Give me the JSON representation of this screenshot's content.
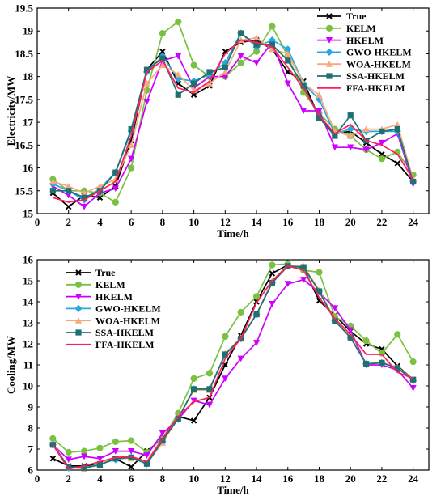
{
  "chart_data": [
    {
      "type": "line",
      "title": "",
      "xlabel": "Time/h",
      "ylabel": "Electricity/MW",
      "xlim": [
        0,
        25
      ],
      "ylim": [
        15,
        19.5
      ],
      "xticks": [
        0,
        2,
        4,
        6,
        8,
        10,
        12,
        14,
        16,
        18,
        20,
        22,
        24
      ],
      "yticks": [
        15,
        15.5,
        16,
        16.5,
        17,
        17.5,
        18,
        18.5,
        19,
        19.5
      ],
      "ytick_labels": [
        "15",
        "15.5",
        "16",
        "16.5",
        "17",
        "17.5",
        "18",
        "18.5",
        "19",
        "19.5"
      ],
      "grid": false,
      "legend": "top-right",
      "x": [
        1,
        2,
        3,
        4,
        5,
        6,
        7,
        8,
        9,
        10,
        11,
        12,
        13,
        14,
        15,
        16,
        17,
        18,
        19,
        20,
        21,
        22,
        23,
        24
      ],
      "series": [
        {
          "name": "True",
          "color": "#000000",
          "marker": "x",
          "values": [
            15.45,
            15.15,
            15.4,
            15.35,
            15.6,
            16.6,
            18.15,
            18.55,
            17.85,
            17.6,
            17.8,
            18.55,
            18.75,
            18.8,
            18.6,
            18.1,
            17.9,
            17.1,
            16.75,
            16.8,
            16.55,
            16.3,
            16.1,
            15.7
          ]
        },
        {
          "name": "KELM",
          "color": "#7ac142",
          "marker": "circle",
          "values": [
            15.75,
            15.5,
            15.5,
            15.45,
            15.25,
            16.0,
            17.7,
            18.95,
            19.2,
            18.25,
            18.0,
            18.0,
            18.3,
            18.55,
            19.1,
            18.45,
            17.65,
            17.2,
            16.85,
            16.7,
            16.4,
            16.2,
            16.35,
            15.85
          ]
        },
        {
          "name": "HKELM",
          "color": "#cc00ff",
          "marker": "triangle-down",
          "values": [
            15.6,
            15.4,
            15.15,
            15.45,
            15.55,
            16.2,
            17.45,
            18.35,
            18.45,
            17.75,
            18.0,
            18.0,
            18.45,
            18.3,
            18.75,
            17.85,
            17.25,
            17.25,
            16.45,
            16.45,
            16.4,
            16.55,
            16.75,
            15.65
          ]
        },
        {
          "name": "GWO-HKELM",
          "color": "#29a8e0",
          "marker": "diamond",
          "values": [
            15.65,
            15.5,
            15.3,
            15.55,
            15.9,
            16.8,
            18.1,
            18.45,
            17.95,
            17.9,
            18.05,
            18.3,
            18.95,
            18.65,
            18.8,
            18.6,
            17.85,
            17.5,
            16.75,
            16.85,
            16.8,
            16.8,
            16.8,
            15.7
          ]
        },
        {
          "name": "WOA-HKELM",
          "color": "#f5a97f",
          "marker": "triangle-up",
          "values": [
            15.7,
            15.6,
            15.45,
            15.6,
            15.75,
            16.5,
            17.85,
            18.25,
            18.05,
            17.7,
            17.85,
            18.1,
            18.8,
            18.85,
            18.6,
            18.5,
            17.85,
            17.6,
            16.8,
            16.7,
            16.85,
            16.85,
            16.95,
            15.75
          ]
        },
        {
          "name": "SSA-HKELM",
          "color": "#1f7071",
          "marker": "square",
          "values": [
            15.5,
            15.5,
            15.35,
            15.5,
            15.9,
            16.85,
            18.15,
            18.4,
            17.6,
            17.85,
            18.1,
            18.2,
            18.95,
            18.7,
            18.7,
            18.35,
            17.8,
            17.1,
            16.7,
            17.15,
            16.6,
            16.8,
            16.85,
            15.7
          ]
        },
        {
          "name": "FFA-HKELM",
          "color": "#ff1e5a",
          "marker": "none",
          "values": [
            15.35,
            15.25,
            15.3,
            15.5,
            15.7,
            16.7,
            18.1,
            18.35,
            17.75,
            17.65,
            17.9,
            18.5,
            18.8,
            18.75,
            18.65,
            18.2,
            17.75,
            17.15,
            16.75,
            16.95,
            16.6,
            16.5,
            16.3,
            15.75
          ]
        }
      ]
    },
    {
      "type": "line",
      "title": "",
      "xlabel": "Time/h",
      "ylabel": "Cooling/MW",
      "xlim": [
        0,
        25
      ],
      "ylim": [
        6,
        16
      ],
      "xticks": [
        0,
        2,
        4,
        6,
        8,
        10,
        12,
        14,
        16,
        18,
        20,
        22,
        24
      ],
      "yticks": [
        6,
        7,
        8,
        9,
        10,
        11,
        12,
        13,
        14,
        15,
        16
      ],
      "ytick_labels": [
        "6",
        "7",
        "8",
        "9",
        "10",
        "11",
        "12",
        "13",
        "14",
        "15",
        "16"
      ],
      "grid": false,
      "legend": "top-left",
      "x": [
        1,
        2,
        3,
        4,
        5,
        6,
        7,
        8,
        9,
        10,
        11,
        12,
        13,
        14,
        15,
        16,
        17,
        18,
        19,
        20,
        21,
        22,
        23,
        24
      ],
      "series": [
        {
          "name": "True",
          "color": "#000000",
          "marker": "x",
          "values": [
            6.55,
            6.2,
            6.2,
            6.3,
            6.55,
            6.15,
            6.9,
            7.5,
            8.55,
            8.35,
            9.45,
            11.0,
            12.4,
            14.0,
            15.35,
            15.75,
            15.6,
            14.05,
            13.35,
            12.6,
            12.0,
            11.75,
            10.95,
            10.3
          ]
        },
        {
          "name": "KELM",
          "color": "#7ac142",
          "marker": "circle",
          "values": [
            7.5,
            6.85,
            6.9,
            7.05,
            7.35,
            7.4,
            6.85,
            7.5,
            8.7,
            10.35,
            10.6,
            12.35,
            13.5,
            14.25,
            15.75,
            15.8,
            15.5,
            15.4,
            13.3,
            12.85,
            12.15,
            11.55,
            12.45,
            11.15
          ]
        },
        {
          "name": "HKELM",
          "color": "#cc00ff",
          "marker": "triangle-down",
          "values": [
            7.2,
            6.5,
            6.65,
            6.55,
            6.9,
            6.9,
            6.7,
            7.75,
            8.4,
            9.3,
            9.1,
            10.35,
            11.3,
            12.05,
            13.9,
            14.85,
            15.05,
            14.45,
            13.7,
            12.65,
            11.0,
            11.0,
            10.75,
            9.9
          ]
        },
        {
          "name": "GWO-HKELM",
          "color": "#29a8e0",
          "marker": "diamond",
          "values": [
            7.2,
            6.1,
            6.1,
            6.3,
            6.5,
            6.6,
            6.3,
            7.35,
            8.45,
            9.85,
            9.85,
            11.5,
            12.25,
            13.4,
            14.9,
            15.7,
            15.65,
            14.5,
            13.1,
            12.3,
            11.05,
            11.1,
            10.85,
            10.25
          ]
        },
        {
          "name": "WOA-HKELM",
          "color": "#f5a97f",
          "marker": "triangle-up",
          "values": [
            7.25,
            6.15,
            6.05,
            6.3,
            6.55,
            6.55,
            6.35,
            7.3,
            8.5,
            9.8,
            9.8,
            11.55,
            12.3,
            13.4,
            15.0,
            15.75,
            15.7,
            14.55,
            13.15,
            12.35,
            11.05,
            11.1,
            10.9,
            10.3
          ]
        },
        {
          "name": "SSA-HKELM",
          "color": "#1f7071",
          "marker": "square",
          "values": [
            7.2,
            6.15,
            6.1,
            6.25,
            6.55,
            6.6,
            6.3,
            7.4,
            8.45,
            9.85,
            9.85,
            11.5,
            12.25,
            13.4,
            14.9,
            15.7,
            15.65,
            14.5,
            13.1,
            12.3,
            11.05,
            11.1,
            10.85,
            10.3
          ]
        },
        {
          "name": "FFA-HKELM",
          "color": "#ff1e5a",
          "marker": "none",
          "values": [
            7.2,
            6.05,
            6.2,
            6.4,
            6.6,
            6.65,
            6.4,
            7.5,
            8.55,
            9.25,
            9.45,
            11.3,
            12.25,
            13.95,
            15.0,
            15.7,
            15.5,
            14.2,
            13.2,
            12.45,
            11.5,
            11.5,
            10.65,
            10.35
          ]
        }
      ]
    }
  ]
}
